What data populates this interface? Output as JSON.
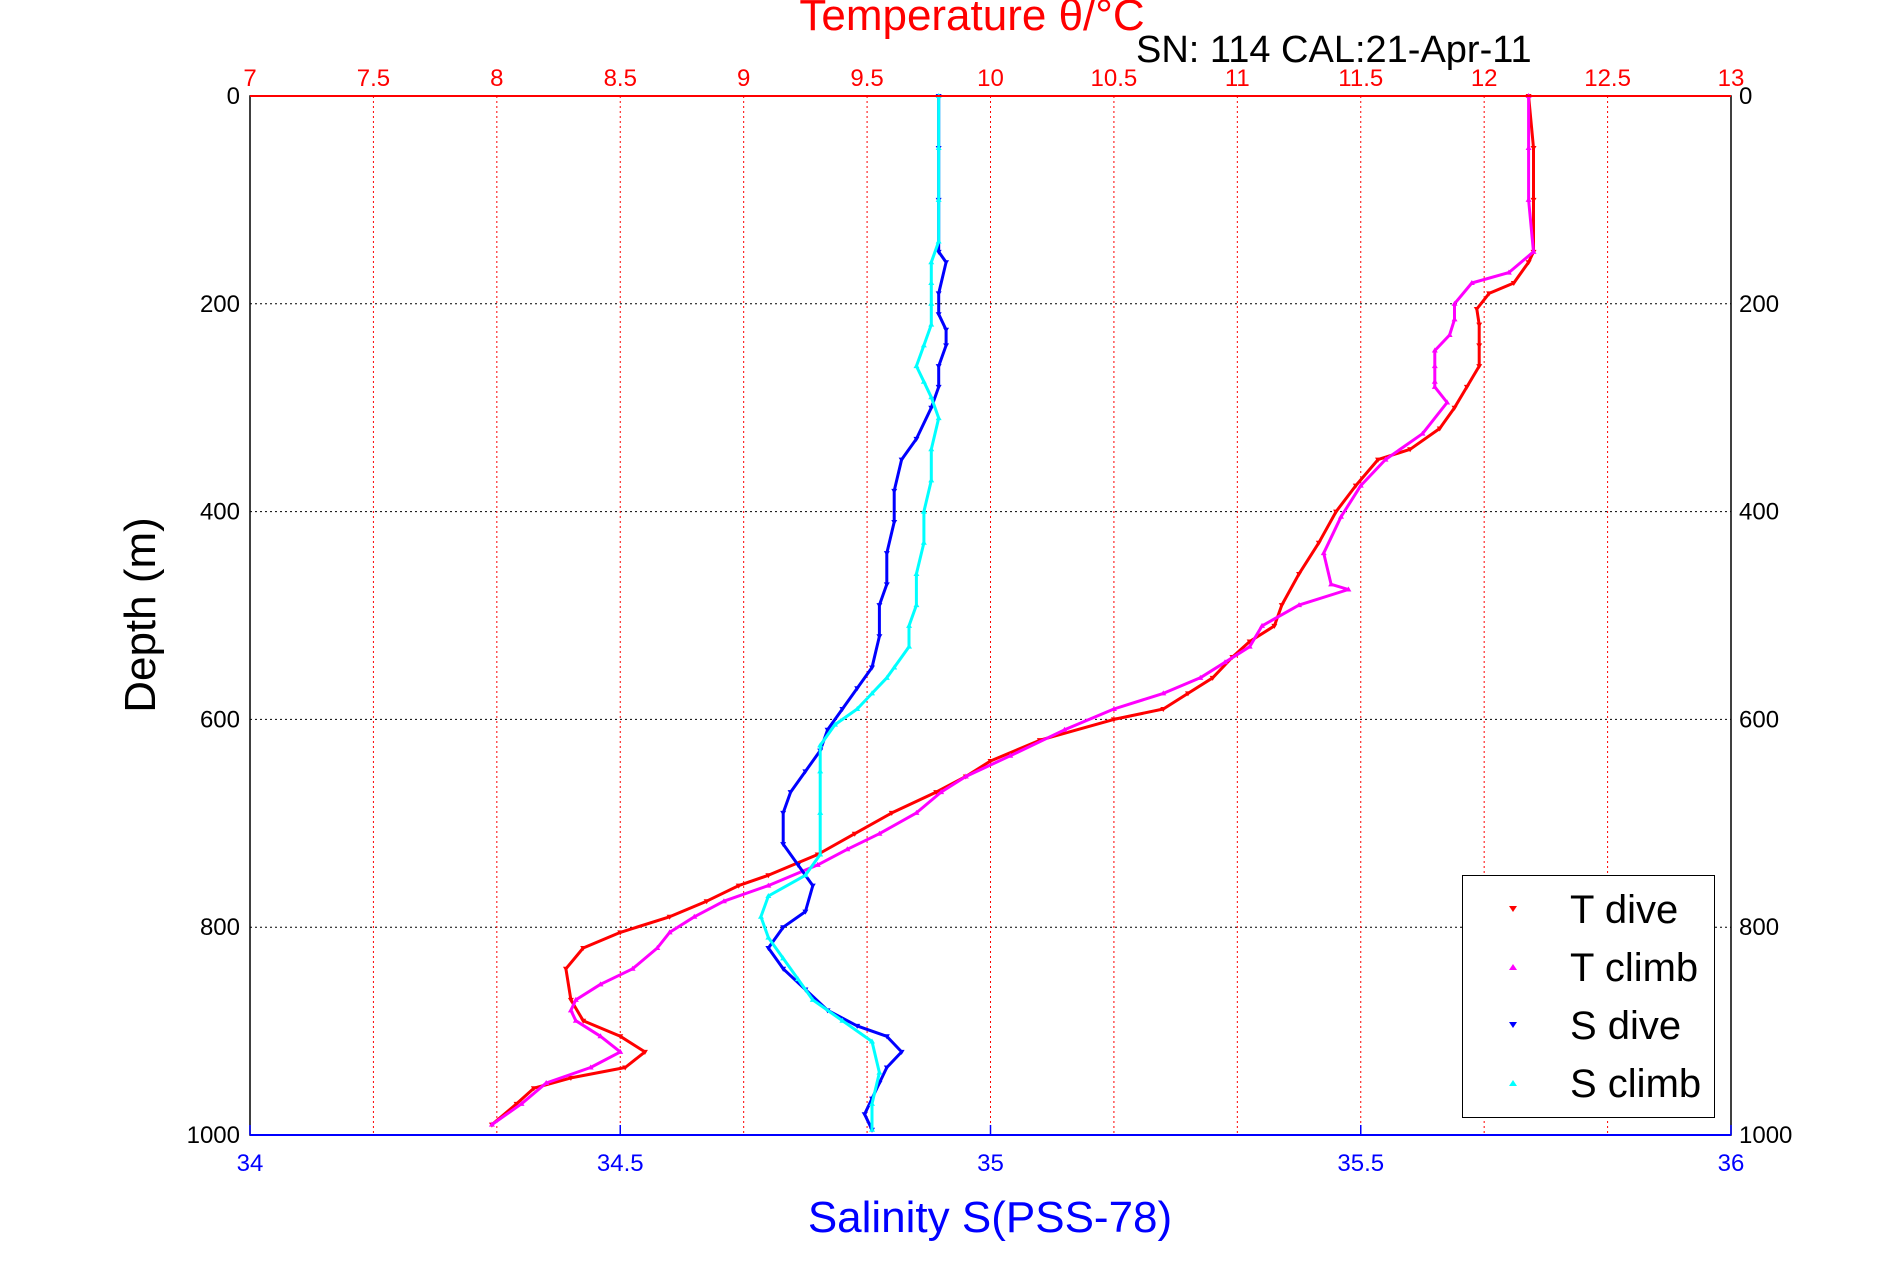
{
  "annotation": "SN: 114  CAL:21-Apr-11",
  "colors": {
    "temperature_axis": "#ff0000",
    "salinity_axis": "#0000ff",
    "depth_axis": "#000000",
    "grid_depth": "#000000",
    "grid_temperature": "#ff0000"
  },
  "legend": {
    "placement": "bottom-right",
    "items": [
      {
        "label": "T dive",
        "color": "#ff0000",
        "marker": "triangle-down"
      },
      {
        "label": "T climb",
        "color": "#ff00ff",
        "marker": "triangle-up"
      },
      {
        "label": "S dive",
        "color": "#0000ff",
        "marker": "triangle-down"
      },
      {
        "label": "S climb",
        "color": "#00ffff",
        "marker": "triangle-up"
      }
    ]
  },
  "chart_data": {
    "type": "scatter",
    "title": "Temperature θ/°C",
    "xlabel": "Salinity S(PSS-78)",
    "ylabel": "Depth (m)",
    "temperature_axis": {
      "label": "Temperature θ/°C",
      "range": [
        7,
        13
      ],
      "ticks": [
        "7",
        "7.5",
        "8",
        "8.5",
        "9",
        "9.5",
        "10",
        "10.5",
        "11",
        "11.5",
        "12",
        "12.5",
        "13"
      ]
    },
    "salinity_axis": {
      "label": "Salinity S(PSS-78)",
      "range": [
        34,
        36
      ],
      "ticks": [
        "34",
        "34.5",
        "35",
        "35.5",
        "36"
      ]
    },
    "depth_axis": {
      "label": "Depth (m)",
      "range": [
        0,
        1000
      ],
      "reversed": true,
      "ticks": [
        "0",
        "200",
        "400",
        "600",
        "800",
        "1000"
      ]
    },
    "grid": true,
    "series": [
      {
        "name": "T dive",
        "axis": "temperature",
        "color": "#ff0000",
        "x": [
          12.18,
          12.2,
          12.2,
          12.2,
          12.18,
          12.12,
          12.02,
          11.97,
          11.98,
          11.98,
          11.98,
          11.93,
          11.88,
          11.82,
          11.7,
          11.57,
          11.48,
          11.4,
          11.33,
          11.25,
          11.18,
          11.15,
          11.05,
          10.98,
          10.9,
          10.8,
          10.7,
          10.5,
          10.2,
          10.0,
          9.9,
          9.78,
          9.6,
          9.45,
          9.3,
          9.1,
          8.98,
          8.85,
          8.7,
          8.5,
          8.35,
          8.28,
          8.3,
          8.35,
          8.5,
          8.6,
          8.52,
          8.3,
          8.15,
          8.08,
          7.98
        ],
        "y": [
          0,
          50,
          100,
          150,
          160,
          180,
          190,
          205,
          220,
          240,
          260,
          280,
          300,
          320,
          340,
          350,
          375,
          400,
          430,
          460,
          490,
          510,
          525,
          540,
          560,
          575,
          590,
          600,
          620,
          640,
          655,
          670,
          690,
          710,
          730,
          750,
          760,
          775,
          790,
          805,
          820,
          840,
          870,
          890,
          905,
          920,
          935,
          945,
          955,
          970,
          990
        ]
      },
      {
        "name": "T climb",
        "axis": "temperature",
        "color": "#ff00ff",
        "x": [
          12.18,
          12.18,
          12.18,
          12.2,
          12.1,
          11.95,
          11.88,
          11.88,
          11.86,
          11.8,
          11.8,
          11.8,
          11.8,
          11.85,
          11.75,
          11.6,
          11.5,
          11.42,
          11.35,
          11.38,
          11.45,
          11.25,
          11.1,
          11.05,
          10.95,
          10.85,
          10.7,
          10.5,
          10.3,
          10.08,
          9.9,
          9.8,
          9.7,
          9.55,
          9.42,
          9.3,
          9.1,
          8.92,
          8.8,
          8.7,
          8.65,
          8.55,
          8.42,
          8.32,
          8.3,
          8.32,
          8.42,
          8.5,
          8.38,
          8.2,
          8.1,
          7.98
        ],
        "y": [
          0,
          50,
          100,
          150,
          170,
          180,
          200,
          215,
          230,
          245,
          260,
          275,
          280,
          295,
          325,
          350,
          375,
          405,
          440,
          470,
          475,
          490,
          510,
          530,
          545,
          560,
          575,
          590,
          610,
          635,
          655,
          670,
          690,
          710,
          725,
          740,
          760,
          775,
          790,
          805,
          820,
          840,
          855,
          870,
          880,
          890,
          905,
          920,
          935,
          950,
          970,
          990
        ]
      },
      {
        "name": "S dive",
        "axis": "salinity",
        "color": "#0000ff",
        "x": [
          34.93,
          34.93,
          34.93,
          34.93,
          34.94,
          34.93,
          34.93,
          34.94,
          34.94,
          34.93,
          34.93,
          34.92,
          34.9,
          34.88,
          34.87,
          34.87,
          34.86,
          34.86,
          34.85,
          34.85,
          34.84,
          34.82,
          34.8,
          34.78,
          34.77,
          34.75,
          34.73,
          34.72,
          34.72,
          34.74,
          34.76,
          34.75,
          34.72,
          34.7,
          34.72,
          34.75,
          34.78,
          34.82,
          34.86,
          34.88,
          34.86,
          34.85,
          34.84,
          34.83,
          34.84
        ],
        "y": [
          0,
          50,
          100,
          150,
          160,
          190,
          210,
          225,
          240,
          260,
          280,
          300,
          330,
          350,
          380,
          410,
          440,
          470,
          490,
          520,
          550,
          570,
          590,
          610,
          630,
          650,
          670,
          690,
          720,
          740,
          760,
          785,
          800,
          820,
          840,
          860,
          880,
          895,
          905,
          920,
          935,
          950,
          965,
          980,
          995
        ]
      },
      {
        "name": "S climb",
        "axis": "salinity",
        "color": "#00ffff",
        "x": [
          34.93,
          34.93,
          34.93,
          34.93,
          34.92,
          34.92,
          34.92,
          34.92,
          34.91,
          34.9,
          34.91,
          34.92,
          34.93,
          34.92,
          34.92,
          34.91,
          34.91,
          34.9,
          34.9,
          34.89,
          34.89,
          34.87,
          34.86,
          34.84,
          34.82,
          34.79,
          34.77,
          34.77,
          34.77,
          34.77,
          34.75,
          34.7,
          34.69,
          34.7,
          34.72,
          34.74,
          34.76,
          34.8,
          34.84,
          34.85,
          34.84,
          34.84
        ],
        "y": [
          0,
          50,
          100,
          140,
          160,
          180,
          200,
          220,
          240,
          260,
          275,
          290,
          310,
          340,
          370,
          400,
          430,
          460,
          490,
          510,
          530,
          550,
          560,
          575,
          590,
          605,
          625,
          650,
          690,
          730,
          750,
          770,
          790,
          810,
          830,
          850,
          870,
          890,
          910,
          940,
          970,
          995
        ]
      }
    ]
  }
}
